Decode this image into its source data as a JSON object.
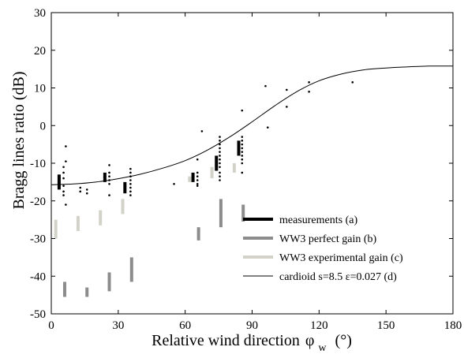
{
  "chart_data": {
    "type": "scatter",
    "xlabel": "Relative wind direction",
    "xlabel_symbol": "φ",
    "xlabel_subscript": "w",
    "xlabel_unit": "(°)",
    "ylabel": "Bragg lines ratio  (dB)",
    "xlim": [
      0,
      180
    ],
    "ylim": [
      -50,
      30
    ],
    "x_ticks": [
      0,
      30,
      60,
      90,
      120,
      150,
      180
    ],
    "y_ticks": [
      -50,
      -40,
      -30,
      -20,
      -10,
      0,
      10,
      20,
      30
    ],
    "grid": false,
    "legend_position": "bottom-right",
    "legend": [
      {
        "label": "measurements (a)",
        "color": "#000000",
        "width": 4
      },
      {
        "label": "WW3 perfect gain (b)",
        "color": "#8c8c8c",
        "width": 4
      },
      {
        "label": "WW3 experimental gain (c)",
        "color": "#d2d2c8",
        "width": 4
      },
      {
        "label": "cardioid s=8.5  ε=0.027 (d)",
        "color": "#000000",
        "width": 1
      }
    ],
    "series": [
      {
        "name": "measurements (a)",
        "marker": "vertical-bar",
        "color": "#000000",
        "ranges": [
          {
            "x": 3.5,
            "low": -17,
            "high": -13
          },
          {
            "x": 24,
            "low": -15,
            "high": -12.5
          },
          {
            "x": 33,
            "low": -18,
            "high": -15
          },
          {
            "x": 63.5,
            "low": -15,
            "high": -12.5
          },
          {
            "x": 74,
            "low": -12,
            "high": -8
          },
          {
            "x": 84,
            "low": -8,
            "high": -4
          }
        ]
      },
      {
        "name": "WW3 perfect gain (b)",
        "marker": "vertical-bar",
        "color": "#8c8c8c",
        "ranges": [
          {
            "x": 6,
            "low": -45.5,
            "high": -41.5
          },
          {
            "x": 16,
            "low": -45.5,
            "high": -43
          },
          {
            "x": 26,
            "low": -44,
            "high": -39
          },
          {
            "x": 36,
            "low": -41.5,
            "high": -35
          },
          {
            "x": 66,
            "low": -30.5,
            "high": -27
          },
          {
            "x": 76,
            "low": -27,
            "high": -19.5
          },
          {
            "x": 86,
            "low": -25.5,
            "high": -21
          }
        ]
      },
      {
        "name": "WW3 experimental gain (c)",
        "marker": "vertical-bar",
        "color": "#d2d2c8",
        "ranges": [
          {
            "x": 2,
            "low": -30,
            "high": -25
          },
          {
            "x": 12,
            "low": -28,
            "high": -24
          },
          {
            "x": 22,
            "low": -26.5,
            "high": -22.5
          },
          {
            "x": 32,
            "low": -23.5,
            "high": -19.5
          },
          {
            "x": 62,
            "low": -15,
            "high": -13.5
          },
          {
            "x": 72,
            "low": -14,
            "high": -11
          },
          {
            "x": 82,
            "low": -12.5,
            "high": -10
          }
        ]
      },
      {
        "name": "scatter",
        "marker": "dot",
        "color": "#000000",
        "points": [
          [
            6.5,
            -5.5
          ],
          [
            6.5,
            -9.5
          ],
          [
            5.5,
            -11
          ],
          [
            5.5,
            -12.5
          ],
          [
            5.5,
            -14
          ],
          [
            5.5,
            -16
          ],
          [
            5.5,
            -17.5
          ],
          [
            5.5,
            -18.5
          ],
          [
            6.5,
            -21
          ],
          [
            13,
            -16.5
          ],
          [
            13,
            -17.5
          ],
          [
            16,
            -17
          ],
          [
            16,
            -18
          ],
          [
            26,
            -10.5
          ],
          [
            26,
            -12.5
          ],
          [
            26,
            -13.5
          ],
          [
            26,
            -14.5
          ],
          [
            26,
            -15.5
          ],
          [
            26,
            -18.5
          ],
          [
            35.5,
            -11.5
          ],
          [
            35.5,
            -12.5
          ],
          [
            35.5,
            -13.5
          ],
          [
            35.5,
            -14.5
          ],
          [
            35.5,
            -15.5
          ],
          [
            35.5,
            -16.5
          ],
          [
            35.5,
            -17.5
          ],
          [
            35.5,
            -18.5
          ],
          [
            55,
            -15.5
          ],
          [
            65.5,
            -9
          ],
          [
            65.5,
            -12.5
          ],
          [
            65.5,
            -13.5
          ],
          [
            65.5,
            -14.5
          ],
          [
            65.5,
            -15.5
          ],
          [
            65.5,
            -16
          ],
          [
            67.5,
            -1.5
          ],
          [
            75.5,
            -3
          ],
          [
            75.5,
            -4
          ],
          [
            75.5,
            -5
          ],
          [
            75.5,
            -6
          ],
          [
            75.5,
            -7
          ],
          [
            75.5,
            -8
          ],
          [
            75.5,
            -9
          ],
          [
            75.5,
            -10
          ],
          [
            75.5,
            -11
          ],
          [
            75.5,
            -12.5
          ],
          [
            75.5,
            -13.5
          ],
          [
            75.5,
            -14.5
          ],
          [
            85.5,
            4
          ],
          [
            85.5,
            -3
          ],
          [
            85.5,
            -4
          ],
          [
            85.5,
            -5
          ],
          [
            85.5,
            -6
          ],
          [
            85.5,
            -7
          ],
          [
            85.5,
            -8
          ],
          [
            85.5,
            -9
          ],
          [
            85.5,
            -10
          ],
          [
            85.5,
            -12.5
          ],
          [
            96,
            10.5
          ],
          [
            97,
            -0.5
          ],
          [
            105.5,
            9.5
          ],
          [
            105.5,
            5
          ],
          [
            115.5,
            11.5
          ],
          [
            115.5,
            9
          ],
          [
            135,
            11.5
          ]
        ]
      },
      {
        "name": "cardioid s=8.5  ε=0.027 (d)",
        "marker": "line",
        "color": "#000000",
        "points": [
          [
            0,
            -15.7
          ],
          [
            10,
            -15.5
          ],
          [
            20,
            -15.0
          ],
          [
            30,
            -14.1
          ],
          [
            40,
            -12.9
          ],
          [
            50,
            -11.3
          ],
          [
            60,
            -9.3
          ],
          [
            70,
            -6.5
          ],
          [
            80,
            -3.0
          ],
          [
            90,
            1.0
          ],
          [
            100,
            5.2
          ],
          [
            110,
            9.0
          ],
          [
            120,
            11.9
          ],
          [
            130,
            13.7
          ],
          [
            140,
            14.8
          ],
          [
            150,
            15.3
          ],
          [
            160,
            15.6
          ],
          [
            170,
            15.8
          ],
          [
            180,
            15.8
          ]
        ]
      }
    ]
  }
}
